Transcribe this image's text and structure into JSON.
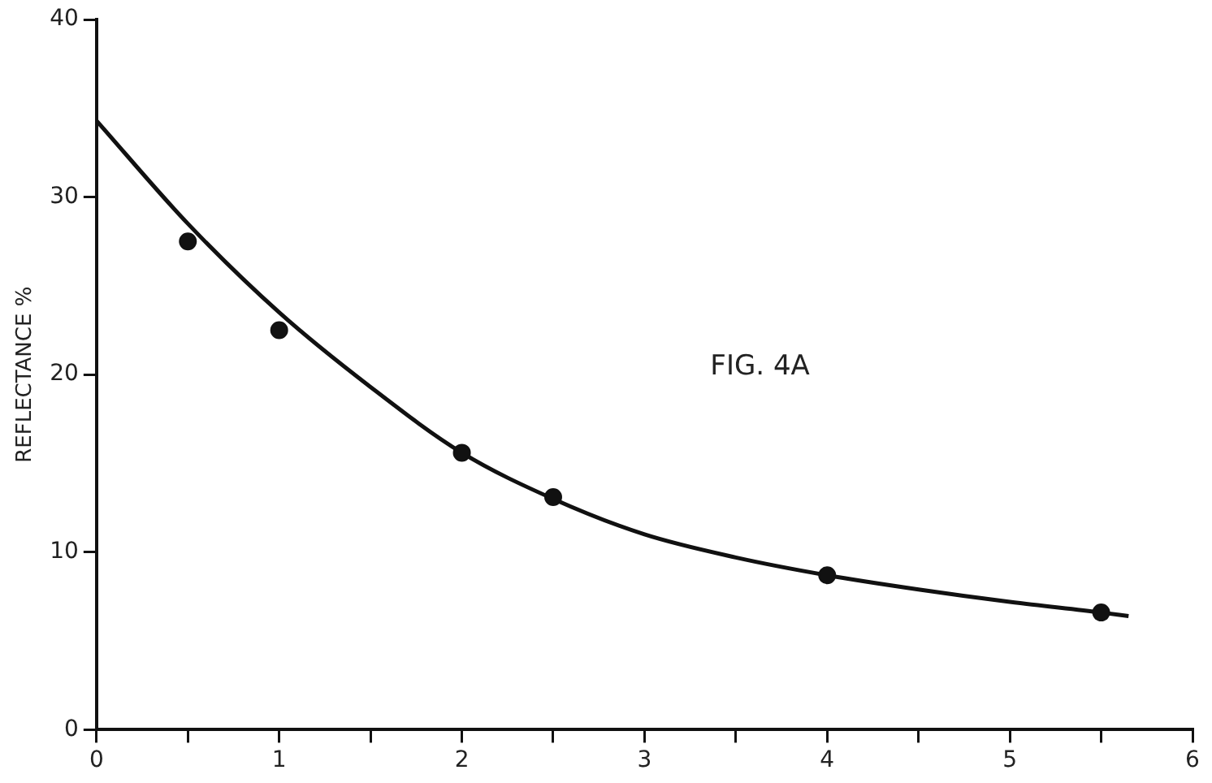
{
  "chart_data": {
    "type": "scatter",
    "ylabel": "REFLECTANCE %",
    "annotations": [
      "FIG. 4A"
    ],
    "series": [
      {
        "color": "#111111",
        "marker": "circle",
        "x": [
          0.5,
          1,
          2,
          2.5,
          4,
          5.5
        ],
        "values": [
          27.5,
          22.5,
          15.6,
          13.1,
          8.7,
          6.6
        ]
      },
      {
        "type": "line",
        "color": "#111111",
        "marker": "none",
        "x": [
          0,
          0.5,
          1,
          1.5,
          2,
          2.5,
          3,
          3.5,
          4,
          4.5,
          5,
          5.5,
          5.65
        ],
        "values": [
          34.3,
          28.5,
          23.5,
          19.3,
          15.6,
          13.0,
          11.0,
          9.7,
          8.7,
          7.9,
          7.2,
          6.6,
          6.4
        ]
      }
    ],
    "xlim": [
      0,
      6
    ],
    "ylim": [
      0,
      40
    ],
    "xticks": [
      0,
      {
        "value": 0.5,
        "label": null
      },
      1,
      {
        "value": 1.5,
        "label": null
      },
      2,
      {
        "value": 2.5,
        "label": null
      },
      3,
      {
        "value": 3.5,
        "label": null
      },
      4,
      {
        "value": 4.5,
        "label": null
      },
      5,
      {
        "value": 5.5,
        "label": null
      },
      6
    ],
    "yticks": [
      0,
      10,
      20,
      30,
      40
    ],
    "grid": false,
    "legend": false
  }
}
